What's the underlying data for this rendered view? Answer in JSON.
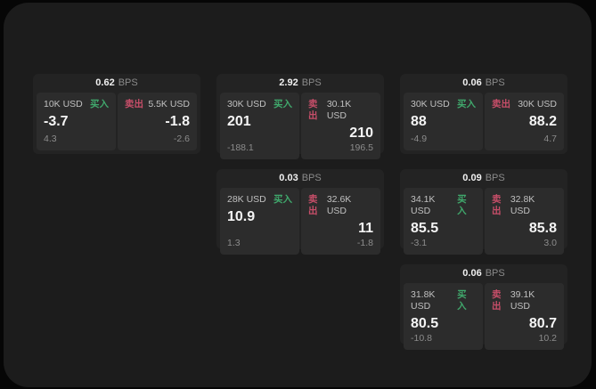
{
  "colors": {
    "buy_green": "#40a86c",
    "sell_red": "#c74e69"
  },
  "cards": [
    {
      "bps_value": "0.62",
      "bps_unit": "BPS",
      "buy": {
        "amount": "10K USD",
        "label": "买入",
        "price": "-3.7",
        "secondary": "4.3"
      },
      "sell": {
        "label": "卖出",
        "amount": "5.5K USD",
        "price": "-1.8",
        "secondary": "-2.6"
      }
    },
    {
      "bps_value": "2.92",
      "bps_unit": "BPS",
      "buy": {
        "amount": "30K USD",
        "label": "买入",
        "price": "201",
        "secondary": "-188.1"
      },
      "sell": {
        "label": "卖出",
        "amount": "30.1K USD",
        "price": "210",
        "secondary": "196.5"
      }
    },
    {
      "bps_value": "0.06",
      "bps_unit": "BPS",
      "buy": {
        "amount": "30K USD",
        "label": "买入",
        "price": "88",
        "secondary": "-4.9"
      },
      "sell": {
        "label": "卖出",
        "amount": "30K USD",
        "price": "88.2",
        "secondary": "4.7"
      }
    },
    {
      "bps_value": "0.03",
      "bps_unit": "BPS",
      "buy": {
        "amount": "28K USD",
        "label": "买入",
        "price": "10.9",
        "secondary": "1.3"
      },
      "sell": {
        "label": "卖出",
        "amount": "32.6K USD",
        "price": "11",
        "secondary": "-1.8"
      }
    },
    {
      "bps_value": "0.09",
      "bps_unit": "BPS",
      "buy": {
        "amount": "34.1K USD",
        "label": "买入",
        "price": "85.5",
        "secondary": "-3.1"
      },
      "sell": {
        "label": "卖出",
        "amount": "32.8K USD",
        "price": "85.8",
        "secondary": "3.0"
      }
    },
    {
      "bps_value": "0.06",
      "bps_unit": "BPS",
      "buy": {
        "amount": "31.8K USD",
        "label": "买入",
        "price": "80.5",
        "secondary": "-10.8"
      },
      "sell": {
        "label": "卖出",
        "amount": "39.1K USD",
        "price": "80.7",
        "secondary": "10.2"
      }
    }
  ]
}
